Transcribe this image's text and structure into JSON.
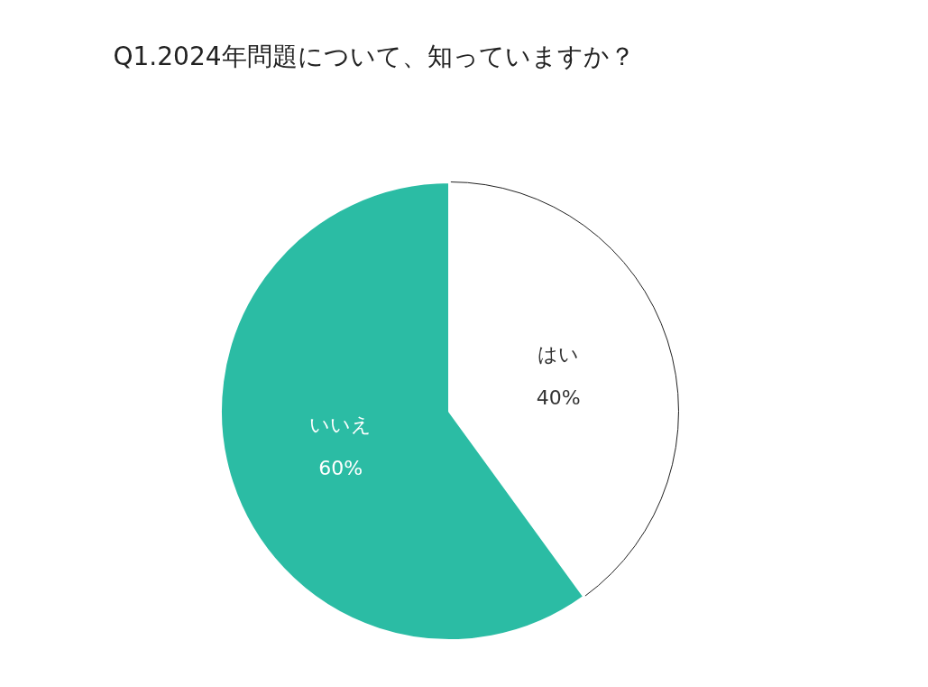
{
  "chart_data": {
    "type": "pie",
    "title": "Q1.2024年問題について、知っていますか？",
    "categories": [
      "はい",
      "いいえ"
    ],
    "values": [
      40,
      60
    ],
    "colors": [
      "#ffffff",
      "#2bbca4"
    ],
    "value_labels": [
      "40%",
      "60%"
    ]
  }
}
